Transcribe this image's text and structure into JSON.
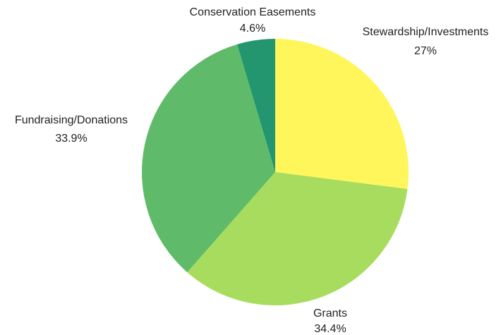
{
  "chart_data": {
    "type": "pie",
    "title": "",
    "categories": [
      "Stewardship/Investments",
      "Grants",
      "Fundraising/Donations",
      "Conservation Easements"
    ],
    "values": [
      27,
      34.4,
      33.9,
      4.6
    ],
    "value_labels": [
      "27%",
      "34.4%",
      "33.9%",
      "4.6%"
    ],
    "colors": [
      "#fef65b",
      "#a8dc5e",
      "#5fbb69",
      "#23966f"
    ],
    "start_angle": "12 o'clock",
    "direction": "clockwise",
    "legend": "none"
  }
}
